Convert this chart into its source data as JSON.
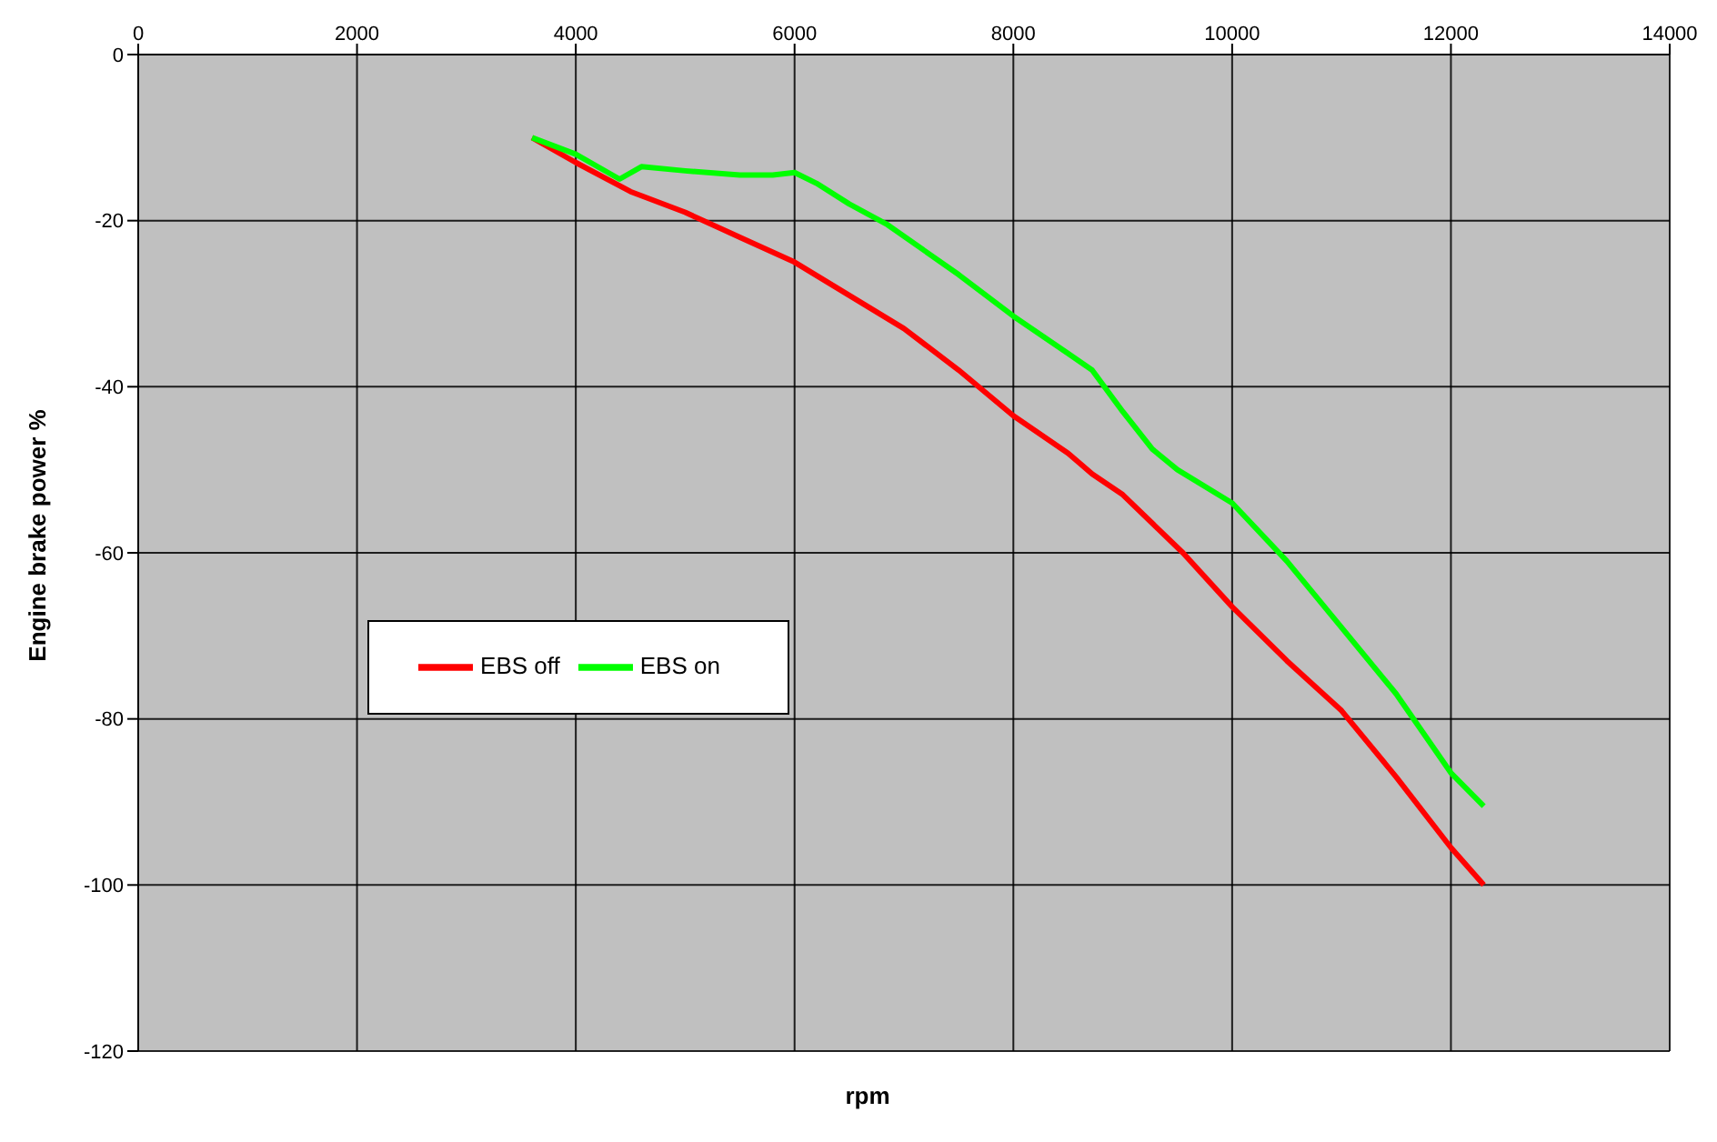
{
  "chart_data": {
    "type": "line",
    "xlabel": "rpm",
    "ylabel": "Engine brake power %",
    "xlim": [
      0,
      14000
    ],
    "xticks": [
      0,
      2000,
      4000,
      6000,
      8000,
      10000,
      12000,
      14000
    ],
    "ylim": [
      -120,
      0
    ],
    "yticks": [
      -120,
      -100,
      -80,
      -60,
      -40,
      -20,
      0
    ],
    "grid": true,
    "legend": "left",
    "marker": "none",
    "line_style": "solid",
    "series": [
      {
        "name": "EBS off",
        "color": "#ff0000",
        "x": [
          3600,
          4000,
          4500,
          5000,
          5500,
          6000,
          6500,
          7000,
          7500,
          8000,
          8500,
          8720,
          9000,
          9550,
          10000,
          10500,
          11000,
          11500,
          12000,
          12300
        ],
        "values": [
          -10,
          -13,
          -16.5,
          -19,
          -22,
          -25,
          -29,
          -33,
          -38,
          -43.5,
          -48,
          -50.5,
          -53,
          -60,
          -66.5,
          -73,
          -79,
          -87,
          -95.5,
          -100
        ]
      },
      {
        "name": "EBS on",
        "color": "#00ff00",
        "x": [
          3600,
          4000,
          4400,
          4600,
          5000,
          5500,
          5800,
          6000,
          6200,
          6500,
          6850,
          7500,
          8000,
          8500,
          8720,
          9000,
          9270,
          9500,
          10000,
          10500,
          11000,
          11500,
          12000,
          12300
        ],
        "values": [
          -10,
          -12,
          -15,
          -13.5,
          -14,
          -14.5,
          -14.5,
          -14.2,
          -15.5,
          -18,
          -20.5,
          -26.5,
          -31.5,
          -36,
          -38,
          -43,
          -47.5,
          -50,
          -54,
          -61,
          -69,
          -77,
          -86.5,
          -90.5
        ]
      }
    ]
  }
}
